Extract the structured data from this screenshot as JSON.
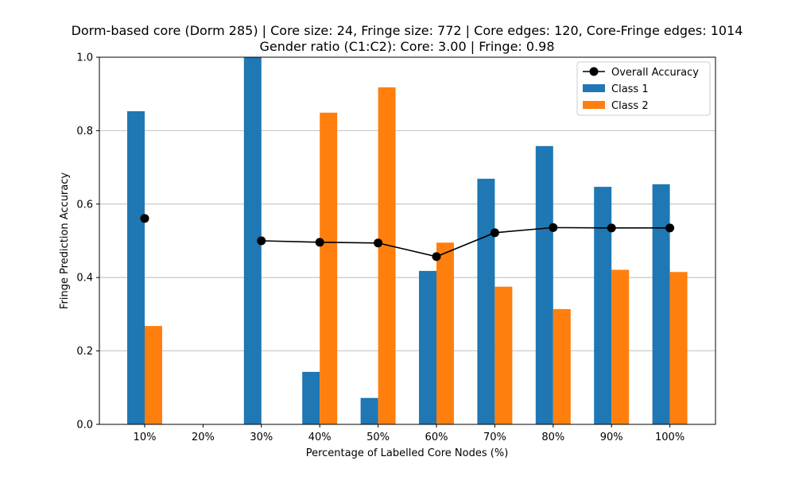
{
  "chart_data": {
    "type": "bar",
    "title_line1": "Dorm-based core (Dorm 285) | Core size: 24, Fringe size: 772 | Core edges: 120, Core-Fringe edges: 1014",
    "title_line2": "Gender ratio (C1:C2): Core: 3.00 | Fringe: 0.98",
    "xlabel": "Percentage of Labelled Core Nodes (%)",
    "ylabel": "Fringe Prediction Accuracy",
    "categories": [
      "10%",
      "20%",
      "30%",
      "40%",
      "50%",
      "60%",
      "70%",
      "80%",
      "90%",
      "100%"
    ],
    "ylim": [
      0,
      1.0
    ],
    "yticks": [
      "0.0",
      "0.2",
      "0.4",
      "0.6",
      "0.8",
      "1.0"
    ],
    "grid": "horizontal",
    "legend_position": "top-right",
    "series": [
      {
        "name": "Class 1",
        "kind": "bar",
        "color": "#1f77b4",
        "values": [
          0.853,
          null,
          1.0,
          0.143,
          0.072,
          0.418,
          0.669,
          0.758,
          0.647,
          0.654
        ]
      },
      {
        "name": "Class 2",
        "kind": "bar",
        "color": "#ff7f0e",
        "values": [
          0.268,
          null,
          null,
          0.849,
          0.918,
          0.495,
          0.375,
          0.314,
          0.421,
          0.415
        ]
      },
      {
        "name": "Overall Accuracy",
        "kind": "line",
        "color": "#000000",
        "values": [
          0.561,
          null,
          0.5,
          0.496,
          0.494,
          0.457,
          0.522,
          0.536,
          0.535,
          0.535
        ]
      }
    ]
  }
}
